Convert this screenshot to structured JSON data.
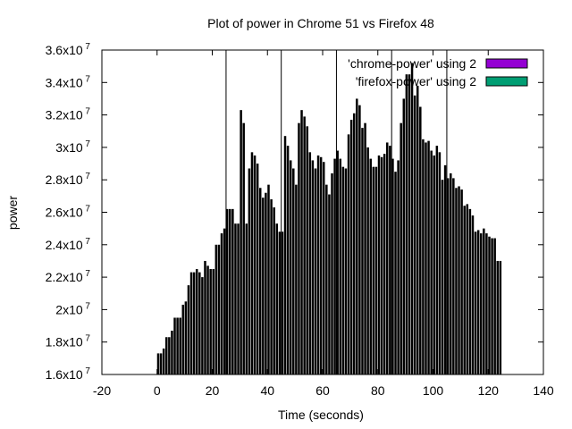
{
  "chart_data": {
    "type": "bar",
    "title": "Plot of power in Chrome 51 vs Firefox 48",
    "xlabel": "Time (seconds)",
    "ylabel": "power",
    "xlim": [
      -20,
      140
    ],
    "ylim": [
      16000000,
      36000000
    ],
    "x_ticks": [
      -20,
      0,
      20,
      40,
      60,
      80,
      100,
      120,
      140
    ],
    "y_ticks": [
      {
        "value": 16000000,
        "mantissa": "1.6x10",
        "exp": "7"
      },
      {
        "value": 18000000,
        "mantissa": "1.8x10",
        "exp": "7"
      },
      {
        "value": 20000000,
        "mantissa": "2x10",
        "exp": "7"
      },
      {
        "value": 22000000,
        "mantissa": "2.2x10",
        "exp": "7"
      },
      {
        "value": 24000000,
        "mantissa": "2.4x10",
        "exp": "7"
      },
      {
        "value": 26000000,
        "mantissa": "2.6x10",
        "exp": "7"
      },
      {
        "value": 28000000,
        "mantissa": "2.8x10",
        "exp": "7"
      },
      {
        "value": 30000000,
        "mantissa": "3x10",
        "exp": "7"
      },
      {
        "value": 32000000,
        "mantissa": "3.2x10",
        "exp": "7"
      },
      {
        "value": 34000000,
        "mantissa": "3.4x10",
        "exp": "7"
      },
      {
        "value": 36000000,
        "mantissa": "3.6x10",
        "exp": "7"
      }
    ],
    "legend_position": "top-right",
    "grid": false,
    "vertical_markers": [
      25,
      45,
      65,
      85,
      105
    ],
    "series": [
      {
        "name": "'chrome-power' using 2",
        "color": "#9400d3",
        "x": [
          0,
          1,
          2,
          3,
          4,
          5,
          6,
          7,
          8,
          9,
          10,
          11,
          12,
          13,
          14,
          15,
          16,
          17,
          18,
          19,
          20,
          21,
          22,
          23,
          24,
          25,
          26,
          27,
          28,
          29,
          30,
          31,
          32,
          33,
          34,
          35,
          36,
          37,
          38,
          39,
          40,
          41,
          42,
          43,
          44,
          45,
          46,
          47,
          48,
          49,
          50,
          51,
          52,
          53,
          54,
          55,
          56,
          57,
          58,
          59,
          60,
          61,
          62,
          63,
          64,
          65,
          66,
          67,
          68,
          69,
          70,
          71,
          72,
          73,
          74,
          75,
          76,
          77,
          78,
          79,
          80,
          81,
          82,
          83,
          84,
          85,
          86,
          87,
          88,
          89,
          90,
          91,
          92,
          93,
          94,
          95,
          96,
          97,
          98,
          99,
          100,
          101,
          102,
          103,
          104,
          105,
          106,
          107,
          108,
          109,
          110,
          111,
          112,
          113,
          114,
          115,
          116,
          117,
          118,
          119,
          120,
          121,
          122,
          123,
          124
        ],
        "values": [
          17300000,
          17300000,
          17600000,
          18300000,
          18300000,
          18700000,
          19500000,
          19500000,
          19500000,
          20300000,
          20500000,
          21500000,
          22300000,
          22300000,
          22500000,
          22300000,
          22000000,
          23000000,
          22700000,
          22500000,
          22500000,
          24000000,
          24000000,
          24700000,
          25000000,
          26200000,
          26200000,
          26200000,
          25300000,
          25300000,
          32300000,
          31500000,
          25300000,
          28700000,
          29700000,
          29500000,
          29000000,
          27500000,
          26900000,
          27200000,
          27700000,
          26800000,
          26300000,
          25300000,
          24800000,
          24800000,
          30700000,
          30100000,
          29200000,
          28700000,
          27700000,
          31500000,
          32300000,
          31900000,
          31300000,
          29700000,
          29200000,
          28700000,
          29500000,
          29400000,
          29100000,
          27700000,
          27100000,
          28400000,
          29300000,
          29800000,
          29300000,
          28800000,
          28700000,
          30800000,
          31700000,
          32100000,
          33000000,
          32600000,
          31200000,
          31500000,
          30000000,
          29300000,
          28800000,
          28800000,
          29500000,
          29400000,
          29600000,
          30300000,
          30100000,
          29300000,
          28500000,
          29200000,
          31500000,
          33000000,
          34500000,
          34500000,
          35200000,
          33200000,
          33800000,
          32500000,
          30500000,
          30300000,
          30400000,
          29800000,
          29500000,
          30100000,
          29700000,
          28000000,
          28900000,
          28100000,
          28400000,
          28100000,
          27500000,
          27600000,
          27400000,
          26400000,
          26500000,
          26200000,
          25800000,
          24800000,
          24900000,
          24700000,
          25000000,
          24700000,
          24500000,
          24400000,
          24400000,
          23000000,
          23000000
        ],
        "visible": false
      },
      {
        "name": "'firefox-power' using 2",
        "color": "#009e73",
        "x": [
          0,
          1,
          2,
          3,
          4,
          5,
          6,
          7,
          8,
          9,
          10,
          11,
          12,
          13,
          14,
          15,
          16,
          17,
          18,
          19,
          20,
          21,
          22,
          23,
          24,
          25,
          26,
          27,
          28,
          29,
          30,
          31,
          32,
          33,
          34,
          35,
          36,
          37,
          38,
          39,
          40,
          41,
          42,
          43,
          44,
          45,
          46,
          47,
          48,
          49,
          50,
          51,
          52,
          53,
          54,
          55,
          56,
          57,
          58,
          59,
          60,
          61,
          62,
          63,
          64,
          65,
          66,
          67,
          68,
          69,
          70,
          71,
          72,
          73,
          74,
          75,
          76,
          77,
          78,
          79,
          80,
          81,
          82,
          83,
          84,
          85,
          86,
          87,
          88,
          89,
          90,
          91,
          92,
          93,
          94,
          95,
          96,
          97,
          98,
          99,
          100,
          101,
          102,
          103,
          104,
          105,
          106,
          107,
          108,
          109,
          110,
          111,
          112,
          113,
          114,
          115,
          116,
          117,
          118,
          119,
          120,
          121,
          122,
          123,
          124
        ],
        "values": [
          17300000,
          17300000,
          17600000,
          18300000,
          18300000,
          18700000,
          19500000,
          19500000,
          19500000,
          20300000,
          20500000,
          21500000,
          22300000,
          22300000,
          22500000,
          22300000,
          22000000,
          23000000,
          22700000,
          22500000,
          22500000,
          24000000,
          24000000,
          24700000,
          25000000,
          26200000,
          26200000,
          26200000,
          25300000,
          25300000,
          32300000,
          31500000,
          25300000,
          28700000,
          29700000,
          29500000,
          29000000,
          27500000,
          26900000,
          27200000,
          27700000,
          26800000,
          26300000,
          25300000,
          24800000,
          24800000,
          30700000,
          30100000,
          29200000,
          28700000,
          27700000,
          31500000,
          32300000,
          31900000,
          31300000,
          29700000,
          29200000,
          28700000,
          29500000,
          29400000,
          29100000,
          27700000,
          27100000,
          28400000,
          29300000,
          29800000,
          29300000,
          28800000,
          28700000,
          30800000,
          31700000,
          32100000,
          33000000,
          32600000,
          31200000,
          31500000,
          30000000,
          29300000,
          28800000,
          28800000,
          29500000,
          29400000,
          29600000,
          30300000,
          30100000,
          29300000,
          28500000,
          29200000,
          31500000,
          33000000,
          34500000,
          34500000,
          35200000,
          33200000,
          33800000,
          32500000,
          30500000,
          30300000,
          30400000,
          29800000,
          29500000,
          30100000,
          29700000,
          28000000,
          28900000,
          28100000,
          28400000,
          28100000,
          27500000,
          27600000,
          27400000,
          26400000,
          26500000,
          26200000,
          25800000,
          24800000,
          24900000,
          24700000,
          25000000,
          24700000,
          24500000,
          24400000,
          24400000,
          23000000,
          23000000
        ]
      }
    ],
    "bar_color": "#000000"
  }
}
